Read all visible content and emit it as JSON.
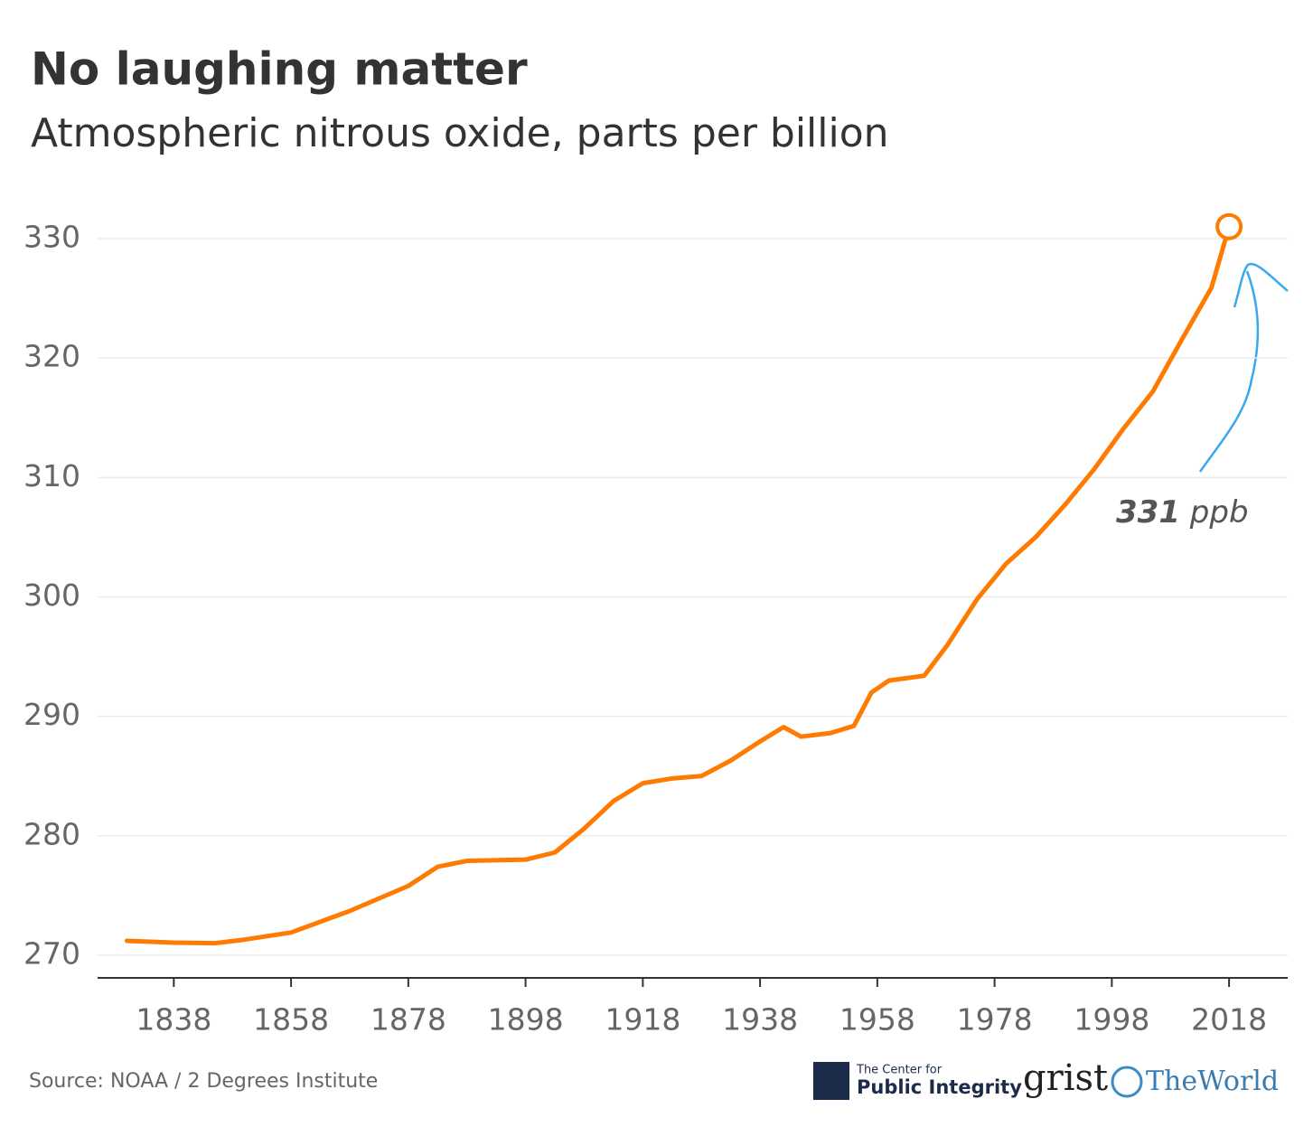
{
  "chart_data": {
    "type": "line",
    "title": "No laughing matter",
    "subtitle": "Atmospheric nitrous oxide, parts per billion",
    "x": [
      1830,
      1838,
      1845,
      1850,
      1858,
      1868,
      1878,
      1883,
      1888,
      1898,
      1903,
      1908,
      1913,
      1918,
      1923,
      1928,
      1933,
      1938,
      1942,
      1945,
      1950,
      1954,
      1957,
      1960,
      1966,
      1970,
      1975,
      1980,
      1985,
      1990,
      1995,
      2000,
      2005,
      2010,
      2015,
      2018
    ],
    "series": [
      {
        "color": "#ff7a00",
        "values": [
          271.2,
          271.05,
          271.0,
          271.3,
          271.9,
          273.7,
          275.8,
          277.4,
          277.9,
          278.0,
          278.6,
          280.6,
          282.9,
          284.4,
          284.8,
          285.0,
          286.3,
          287.9,
          289.1,
          288.3,
          288.6,
          289.2,
          292.0,
          293.0,
          293.4,
          296.0,
          299.8,
          302.8,
          305.0,
          307.7,
          310.7,
          314.1,
          317.2,
          321.6,
          325.9,
          331
        ]
      }
    ],
    "xlim": [
      1825,
      2028
    ],
    "ylim": [
      268.1,
      332.5
    ],
    "xticks": [
      1838,
      1858,
      1878,
      1898,
      1918,
      1938,
      1958,
      1978,
      1998,
      2018
    ],
    "yticks": [
      270,
      280,
      290,
      300,
      310,
      320,
      330
    ],
    "grid": true,
    "annotation": {
      "label": "331",
      "unit": "ppb"
    },
    "source": "Source: NOAA / 2 Degrees Institute",
    "logos": {
      "cpi_top": "The Center for",
      "cpi_bottom": "Public Integrity",
      "grist": "grist",
      "world": "TheWorld"
    }
  }
}
